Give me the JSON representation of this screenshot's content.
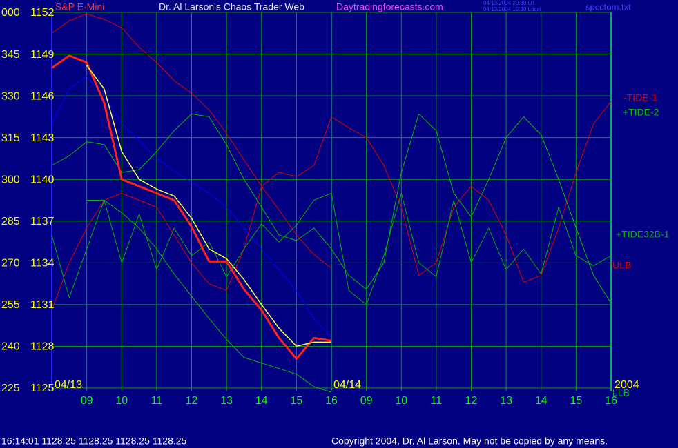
{
  "chart_data": {
    "type": "line",
    "title": "Dr. Al Larson's Chaos Trader Web",
    "subtitle": "Daytradingforecasts.com",
    "instrument": "S&P E-Mini",
    "timestamps": [
      "04/13/2004 20:30 UT",
      "04/13/2004 15:30 Local"
    ],
    "file": "spcctom.txt",
    "date_labels": [
      "04/13",
      "04/14",
      "2004"
    ],
    "grid": true,
    "xlim": [
      0,
      16
    ],
    "xticks": [
      {
        "value": 1,
        "label": "09"
      },
      {
        "value": 2,
        "label": "10"
      },
      {
        "value": 3,
        "label": "11"
      },
      {
        "value": 4,
        "label": "12"
      },
      {
        "value": 5,
        "label": "13"
      },
      {
        "value": 6,
        "label": "14"
      },
      {
        "value": 7,
        "label": "15"
      },
      {
        "value": 8,
        "label": "16"
      },
      {
        "value": 9,
        "label": "09"
      },
      {
        "value": 10,
        "label": "10"
      },
      {
        "value": 11,
        "label": "11"
      },
      {
        "value": 12,
        "label": "12"
      },
      {
        "value": 13,
        "label": "13"
      },
      {
        "value": 14,
        "label": "14"
      },
      {
        "value": 15,
        "label": "15"
      },
      {
        "value": 16,
        "label": "16"
      }
    ],
    "ylim": [
      1125,
      1152
    ],
    "yticks": [
      1152,
      1149,
      1146,
      1143,
      1140,
      1137,
      1134,
      1131,
      1128,
      1125
    ],
    "y_degree_labels": [
      "000",
      "345",
      "330",
      "315",
      "300",
      "285",
      "270",
      "255",
      "240",
      "225"
    ],
    "x": [
      0,
      0.5,
      1,
      1.5,
      2,
      2.5,
      3,
      3.5,
      4,
      4.5,
      5,
      5.5,
      6,
      6.5,
      7,
      7.5,
      8,
      8.5,
      9,
      9.5,
      10,
      10.5,
      11,
      11.5,
      12,
      12.5,
      13,
      13.5,
      14,
      14.5,
      15,
      15.5,
      16
    ],
    "series": [
      {
        "color": "#0000ff",
        "values": [
          1144,
          1146.5,
          1147.4,
          1146,
          1144,
          1142.8,
          1141.5,
          1140.6,
          1139.8,
          1139,
          1138,
          1136.5,
          1135,
          1133.5,
          1132,
          1130,
          1128.6,
          null,
          null,
          null,
          null,
          null,
          null,
          null,
          null,
          null,
          null,
          null,
          null,
          null,
          null,
          null,
          null
        ]
      },
      {
        "name": "ULB",
        "color": "#e00000",
        "values": [
          1150.5,
          1151.4,
          1151.9,
          1151.5,
          1150.9,
          1149.5,
          1148.4,
          1147.1,
          1146.2,
          1145,
          1143.3,
          1141.4,
          1139.5,
          1137.8,
          1136,
          1134.6,
          1133.6,
          null,
          null,
          null,
          null,
          null,
          null,
          null,
          null,
          null,
          null,
          null,
          null,
          null,
          null,
          null,
          null
        ]
      },
      {
        "name": "-TIDE-1",
        "color": "#e00000",
        "values": [
          1130.6,
          1134,
          1136.5,
          1138.5,
          1139,
          1138.5,
          1138,
          1136,
          1134,
          1132.5,
          1132,
          1135,
          1139.5,
          1140.5,
          1140.2,
          1141,
          1144.5,
          1143.7,
          1143,
          1141,
          1138,
          1133.1,
          1134,
          1138,
          1139.5,
          1138.5,
          1136,
          1132.6,
          1133.1,
          1136.5,
          1140.5,
          1144,
          1145.6
        ]
      },
      {
        "name": "+TIDE-2",
        "color": "#00c000",
        "values": [
          1141,
          1141.7,
          1142.7,
          1142.5,
          1140.5,
          1140.7,
          1142,
          1143.5,
          1144.7,
          1144.5,
          1142.5,
          1140,
          1138,
          1136,
          1135.6,
          1136.5,
          1135,
          1133.1,
          1132.1,
          1134,
          1140.5,
          1144.7,
          1143.5,
          1139,
          1137.3,
          1140,
          1143,
          1144.5,
          1143.2,
          1140,
          1136.5,
          1133.1,
          1131.1
        ]
      },
      {
        "name": "+TIDE32B-1",
        "color": "#00b000",
        "values": [
          1136,
          1131.5,
          1135,
          1138.5,
          1134,
          1137.5,
          1133.5,
          1136.5,
          1134.5,
          1135.5,
          1133,
          1135,
          1136.8,
          1135.5,
          1136.7,
          1138.5,
          1139,
          1132,
          1131,
          1134.5,
          1139,
          1134,
          1133,
          1138.5,
          1134,
          1136.5,
          1133.5,
          1135,
          1133.2,
          1138,
          1134.5,
          1133.8,
          1134.5
        ]
      },
      {
        "name": "LLB",
        "color": "#00c000",
        "values": [
          null,
          null,
          1138.5,
          1138.5,
          1137.6,
          1136.5,
          1135,
          1133.2,
          1131.6,
          1130,
          1128.5,
          1127.2,
          1126.8,
          1126.4,
          1126,
          1125.1,
          1124.7,
          null,
          null,
          null,
          null,
          null,
          null,
          null,
          null,
          null,
          null,
          null,
          null,
          null,
          null,
          null,
          null
        ]
      },
      {
        "color": "#ff2020",
        "values": [
          1148,
          1148.9,
          1148.4,
          1145.5,
          1140,
          1139.5,
          1139,
          1138.5,
          1136.6,
          1134.1,
          1134.1,
          1132.1,
          1130.6,
          1128.6,
          1127.1,
          1128.6,
          1128.4,
          null,
          null,
          null,
          null,
          null,
          null,
          null,
          null,
          null,
          null,
          null,
          null,
          null,
          null,
          null,
          null
        ]
      },
      {
        "color": "#ffff40",
        "values": [
          null,
          null,
          1148.2,
          1146.5,
          1142,
          1140,
          1139.3,
          1138.8,
          1137.2,
          1135,
          1134.3,
          1132.8,
          1131,
          1129.3,
          1128,
          1128.3,
          1128.3,
          null,
          null,
          null,
          null,
          null,
          null,
          null,
          null,
          null,
          null,
          null,
          null,
          null,
          null,
          null,
          null
        ]
      }
    ],
    "status_bar": "16:14:01  1128.25 1128.25 1128.25 1128.25",
    "copyright": "Copyright 2004, Dr. Al Larson. May not be copied by any means."
  }
}
